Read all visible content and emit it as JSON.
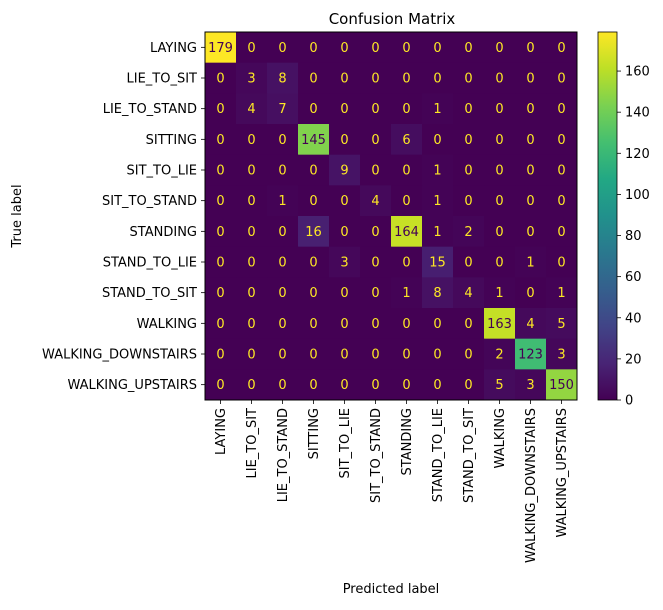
{
  "chart_data": {
    "type": "heatmap",
    "title": "Confusion Matrix",
    "xlabel": "Predicted label",
    "ylabel": "True label",
    "labels": [
      "LAYING",
      "LIE_TO_SIT",
      "LIE_TO_STAND",
      "SITTING",
      "SIT_TO_LIE",
      "SIT_TO_STAND",
      "STANDING",
      "STAND_TO_LIE",
      "STAND_TO_SIT",
      "WALKING",
      "WALKING_DOWNSTAIRS",
      "WALKING_UPSTAIRS"
    ],
    "matrix": [
      [
        179,
        0,
        0,
        0,
        0,
        0,
        0,
        0,
        0,
        0,
        0,
        0
      ],
      [
        0,
        3,
        8,
        0,
        0,
        0,
        0,
        0,
        0,
        0,
        0,
        0
      ],
      [
        0,
        4,
        7,
        0,
        0,
        0,
        0,
        1,
        0,
        0,
        0,
        0
      ],
      [
        0,
        0,
        0,
        145,
        0,
        0,
        6,
        0,
        0,
        0,
        0,
        0
      ],
      [
        0,
        0,
        0,
        0,
        9,
        0,
        0,
        1,
        0,
        0,
        0,
        0
      ],
      [
        0,
        0,
        1,
        0,
        0,
        4,
        0,
        1,
        0,
        0,
        0,
        0
      ],
      [
        0,
        0,
        0,
        16,
        0,
        0,
        164,
        1,
        2,
        0,
        0,
        0
      ],
      [
        0,
        0,
        0,
        0,
        3,
        0,
        0,
        15,
        0,
        0,
        1,
        0
      ],
      [
        0,
        0,
        0,
        0,
        0,
        0,
        1,
        8,
        4,
        1,
        0,
        1
      ],
      [
        0,
        0,
        0,
        0,
        0,
        0,
        0,
        0,
        0,
        163,
        4,
        5
      ],
      [
        0,
        0,
        0,
        0,
        0,
        0,
        0,
        0,
        0,
        2,
        123,
        3
      ],
      [
        0,
        0,
        0,
        0,
        0,
        0,
        0,
        0,
        0,
        5,
        3,
        150
      ]
    ],
    "colormap": "viridis",
    "value_range": [
      0,
      179
    ],
    "colorbar_ticks": [
      0,
      20,
      40,
      60,
      80,
      100,
      120,
      140,
      160
    ],
    "grid": false
  }
}
